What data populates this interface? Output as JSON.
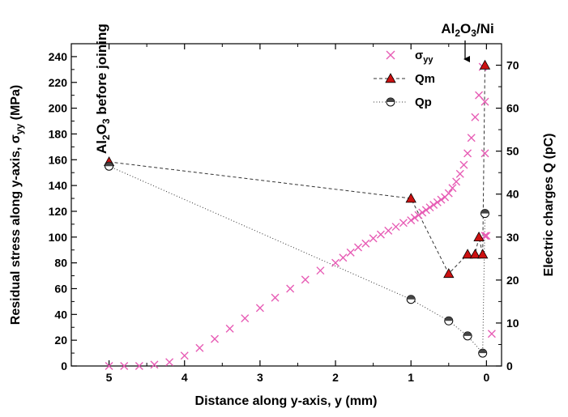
{
  "chart_data": {
    "type": "scatter",
    "title": "",
    "xlabel": "Distance along y-axis, y (mm)",
    "ylabel_left": {
      "main": "Residual stress along y-axis, σ",
      "sub": "yy",
      "tail": " (MPa)"
    },
    "ylabel_right": "Electric charges Q (pC)",
    "x_reversed": true,
    "xlim": [
      5.5,
      -0.2
    ],
    "ylim_left": [
      0,
      250
    ],
    "ylim_right": [
      0,
      75
    ],
    "x_ticks": [
      "5",
      "4",
      "3",
      "2",
      "1",
      "0"
    ],
    "y_left_ticks": [
      "0",
      "20",
      "40",
      "60",
      "80",
      "100",
      "120",
      "140",
      "160",
      "180",
      "200",
      "220",
      "240"
    ],
    "y_right_ticks": [
      "0",
      "10",
      "20",
      "30",
      "40",
      "50",
      "60",
      "70"
    ],
    "annotations": {
      "left": {
        "pre": "Al",
        "sub1": "2",
        "mid": "O",
        "sub2": "3",
        "post": " before joining"
      },
      "right": {
        "pre": "Al",
        "sub1": "2",
        "mid": "O",
        "sub2": "3",
        "post": "/Ni"
      }
    },
    "legend": {
      "position": "top-right",
      "entries": [
        {
          "series": "sigma_yy",
          "label": "σ",
          "sub": "yy"
        },
        {
          "series": "Qm",
          "label": "Qm"
        },
        {
          "series": "Qp",
          "label": "Qp"
        }
      ]
    },
    "colors": {
      "sigma_yy": "#e75db5",
      "Qm_fill": "#cc1111",
      "Qp_fill": "#444444"
    },
    "series": [
      {
        "id": "sigma_yy",
        "axis": "left",
        "marker": "x",
        "x": [
          5.0,
          4.8,
          4.6,
          4.4,
          4.2,
          4.0,
          3.8,
          3.6,
          3.4,
          3.2,
          3.0,
          2.8,
          2.6,
          2.4,
          2.2,
          2.0,
          1.9,
          1.8,
          1.7,
          1.6,
          1.5,
          1.4,
          1.3,
          1.2,
          1.1,
          1.0,
          0.95,
          0.9,
          0.85,
          0.8,
          0.75,
          0.7,
          0.65,
          0.6,
          0.55,
          0.5,
          0.45,
          0.4,
          0.35,
          0.3,
          0.25,
          0.2,
          0.15,
          0.1,
          0.05,
          0.02,
          0.02,
          0.02,
          0.0,
          -0.07
        ],
        "y": [
          0,
          0,
          0,
          1,
          3,
          8,
          14,
          21,
          29,
          37,
          45,
          53,
          60,
          67,
          74,
          80,
          84,
          88,
          92,
          95,
          99,
          102,
          105,
          108,
          111,
          113,
          115,
          117,
          119,
          121,
          123,
          125,
          127,
          129,
          131,
          134,
          138,
          143,
          149,
          156,
          165,
          177,
          193,
          210,
          232,
          205,
          165,
          101,
          101,
          25
        ]
      },
      {
        "id": "Qm",
        "axis": "right",
        "marker": "triangle",
        "x": [
          5.0,
          1.0,
          0.5,
          0.25,
          0.15,
          0.1,
          0.05,
          0.02
        ],
        "y": [
          47.5,
          39,
          21.5,
          26,
          26,
          30,
          26,
          70
        ]
      },
      {
        "id": "Qp",
        "axis": "right",
        "marker": "half-circle",
        "x": [
          5.0,
          1.0,
          0.5,
          0.25,
          0.05,
          0.02
        ],
        "y": [
          46.5,
          15.5,
          10.5,
          7,
          3,
          35.5
        ]
      }
    ]
  }
}
